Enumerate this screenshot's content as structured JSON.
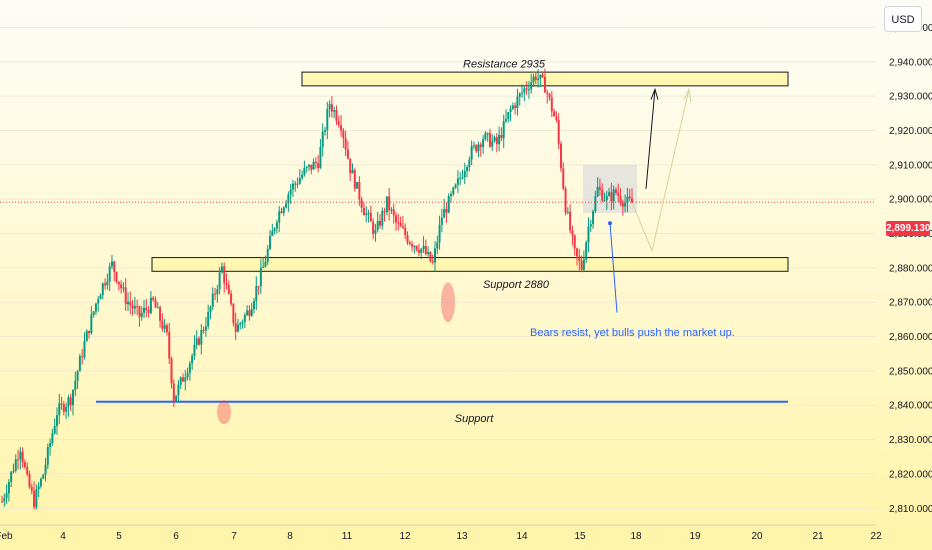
{
  "header": {
    "currency": "USD"
  },
  "price_badge": "2,899.130",
  "chart_data": {
    "type": "candlestick",
    "x_ticks": [
      "Feb",
      "4",
      "5",
      "6",
      "7",
      "8",
      "11",
      "12",
      "13",
      "14",
      "15",
      "18",
      "19",
      "20",
      "21",
      "22"
    ],
    "y_ticks": [
      "2,950.000",
      "2,940.000",
      "2,930.000",
      "2,920.000",
      "2,910.000",
      "2,900.000",
      "2,890.000",
      "2,880.000",
      "2,870.000",
      "2,860.000",
      "2,850.000",
      "2,840.000",
      "2,830.000",
      "2,820.000",
      "2,810.000"
    ],
    "ylim": [
      2806,
      2958
    ],
    "current_price": 2899.13,
    "colors": {
      "up": "#089981",
      "down": "#f23645",
      "support_line": "#2962ff",
      "note": "#2962ff"
    },
    "zones": [
      {
        "label": "Resistance 2935",
        "low": 2933,
        "high": 2937
      },
      {
        "label": "Support 2880",
        "low": 2879,
        "high": 2883
      }
    ],
    "support_line": {
      "label": "Support",
      "value": 2841
    },
    "annotation": "Bears resist, yet bulls push the market up.",
    "anchors": [
      [
        0,
        2812
      ],
      [
        5,
        2822
      ],
      [
        8,
        2828
      ],
      [
        11,
        2818
      ],
      [
        14,
        2812
      ],
      [
        18,
        2820
      ],
      [
        24,
        2838
      ],
      [
        30,
        2842
      ],
      [
        36,
        2858
      ],
      [
        42,
        2872
      ],
      [
        48,
        2881
      ],
      [
        54,
        2871
      ],
      [
        60,
        2866
      ],
      [
        66,
        2870
      ],
      [
        72,
        2860
      ],
      [
        75,
        2842
      ],
      [
        79,
        2848
      ],
      [
        84,
        2856
      ],
      [
        90,
        2866
      ],
      [
        96,
        2880
      ],
      [
        102,
        2862
      ],
      [
        108,
        2868
      ],
      [
        114,
        2880
      ],
      [
        120,
        2895
      ],
      [
        126,
        2903
      ],
      [
        132,
        2908
      ],
      [
        138,
        2911
      ],
      [
        143,
        2928
      ],
      [
        148,
        2922
      ],
      [
        152,
        2909
      ],
      [
        158,
        2897
      ],
      [
        163,
        2890
      ],
      [
        168,
        2899
      ],
      [
        172,
        2893
      ],
      [
        178,
        2888
      ],
      [
        184,
        2885
      ],
      [
        188,
        2881
      ],
      [
        192,
        2895
      ],
      [
        198,
        2903
      ],
      [
        204,
        2913
      ],
      [
        210,
        2918
      ],
      [
        216,
        2916
      ],
      [
        222,
        2926
      ],
      [
        228,
        2932
      ],
      [
        233,
        2936
      ],
      [
        237,
        2933
      ],
      [
        242,
        2922
      ],
      [
        246,
        2898
      ],
      [
        250,
        2884
      ],
      [
        253,
        2880
      ],
      [
        256,
        2892
      ],
      [
        260,
        2903
      ],
      [
        264,
        2900
      ],
      [
        268,
        2902
      ],
      [
        272,
        2899
      ],
      [
        275,
        2899
      ]
    ]
  }
}
